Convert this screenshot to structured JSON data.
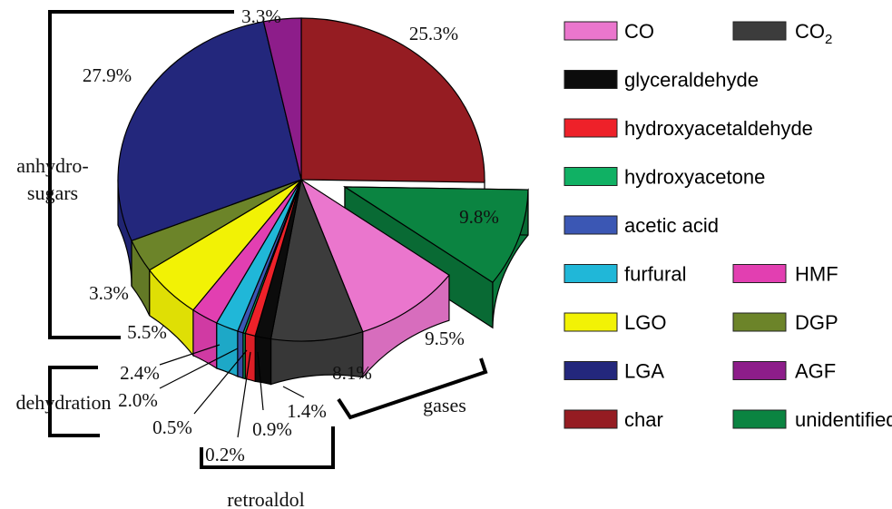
{
  "chart_data": {
    "type": "pie",
    "title": "",
    "exploded": "unidentified",
    "slices": [
      {
        "name": "char",
        "value": 25.3,
        "label": "25.3%",
        "color": "#951c22"
      },
      {
        "name": "unidentified",
        "value": 9.8,
        "label": "9.8%",
        "color": "#0b8441"
      },
      {
        "name": "CO",
        "value": 9.5,
        "label": "9.5%",
        "color": "#ea76cd"
      },
      {
        "name": "CO2",
        "value": 8.1,
        "label": "8.1%",
        "color": "#3c3c3c"
      },
      {
        "name": "glyceraldehyde",
        "value": 1.4,
        "label": "1.4%",
        "color": "#0c0c0c"
      },
      {
        "name": "hydroxyacetaldehyde",
        "value": 0.9,
        "label": "0.9%",
        "color": "#ee2129"
      },
      {
        "name": "hydroxyacetone",
        "value": 0.2,
        "label": "0.2%",
        "color": "#10b164"
      },
      {
        "name": "acetic acid",
        "value": 0.5,
        "label": "0.5%",
        "color": "#3b57b4"
      },
      {
        "name": "furfural",
        "value": 2.0,
        "label": "2.0%",
        "color": "#20b7d8"
      },
      {
        "name": "HMF",
        "value": 2.4,
        "label": "2.4%",
        "color": "#e23fb1"
      },
      {
        "name": "LGO",
        "value": 5.5,
        "label": "5.5%",
        "color": "#f2f205"
      },
      {
        "name": "DGP",
        "value": 3.3,
        "label": "3.3%",
        "color": "#6c8429"
      },
      {
        "name": "LGA",
        "value": 27.9,
        "label": "27.9%",
        "color": "#23277c"
      },
      {
        "name": "AGF",
        "value": 3.3,
        "label": "3.3%",
        "color": "#8d1d8a"
      }
    ],
    "groups": [
      {
        "label": "anhydro-sugars",
        "lines": [
          "anhydro-",
          "sugars"
        ],
        "members": [
          "LGO",
          "DGP",
          "LGA",
          "AGF"
        ]
      },
      {
        "label": "dehydration",
        "members": [
          "HMF",
          "furfural",
          "acetic acid"
        ]
      },
      {
        "label": "retroaldol",
        "members": [
          "hydroxyacetone",
          "hydroxyacetaldehyde",
          "glyceraldehyde"
        ]
      },
      {
        "label": "gases",
        "members": [
          "CO2",
          "CO"
        ]
      }
    ],
    "legend": {
      "placement": "right",
      "rows": [
        [
          {
            "label": "CO",
            "color": "#ea76cd"
          },
          {
            "label": "CO",
            "sub": "2",
            "color": "#3c3c3c"
          }
        ],
        [
          {
            "label": "glyceraldehyde",
            "color": "#0c0c0c"
          }
        ],
        [
          {
            "label": "hydroxyacetaldehyde",
            "color": "#ee2129"
          }
        ],
        [
          {
            "label": "hydroxyacetone",
            "color": "#10b164"
          }
        ],
        [
          {
            "label": "acetic acid",
            "color": "#3b57b4"
          }
        ],
        [
          {
            "label": "furfural",
            "color": "#20b7d8"
          },
          {
            "label": "HMF",
            "color": "#e23fb1"
          }
        ],
        [
          {
            "label": "LGO",
            "color": "#f2f205"
          },
          {
            "label": "DGP",
            "color": "#6c8429"
          }
        ],
        [
          {
            "label": "LGA",
            "color": "#23277c"
          },
          {
            "label": "AGF",
            "color": "#8d1d8a"
          }
        ],
        [
          {
            "label": "char",
            "color": "#951c22"
          },
          {
            "label": "unidentified",
            "color": "#0b8441"
          }
        ]
      ]
    }
  }
}
